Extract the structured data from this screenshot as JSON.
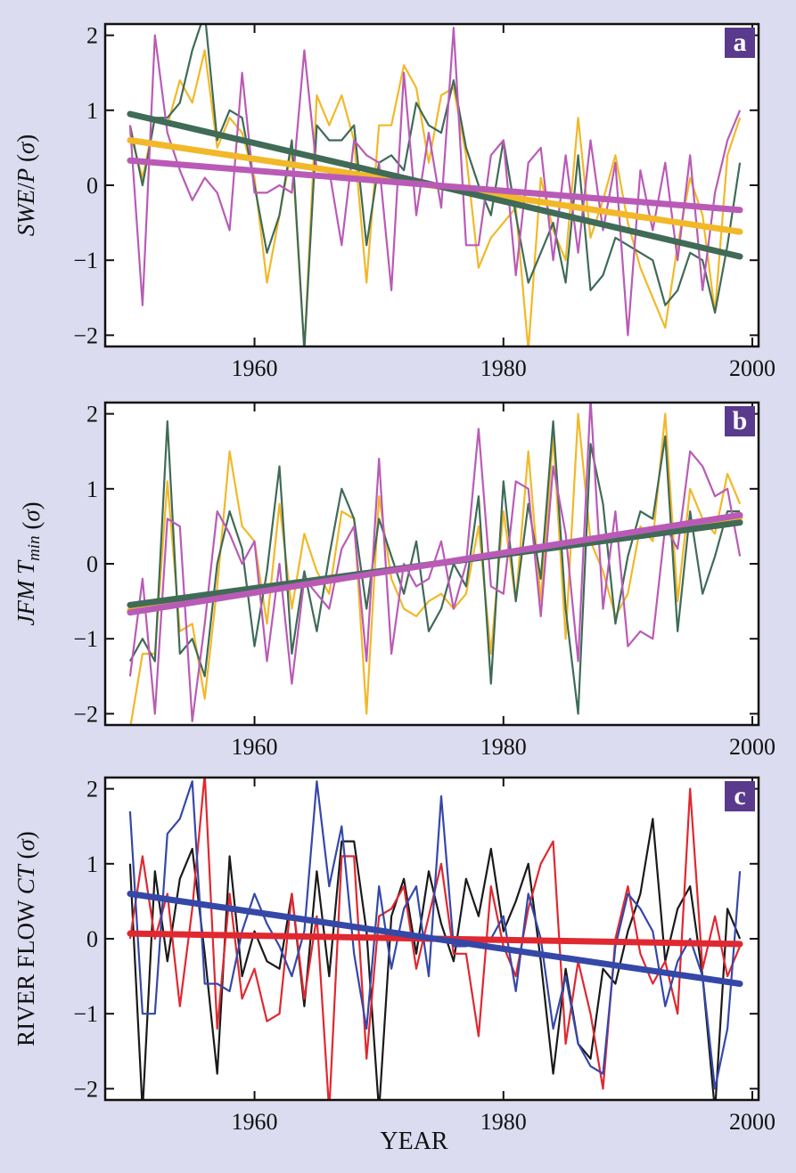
{
  "chart_data": [
    {
      "type": "line",
      "panel_letter": "a",
      "ylabel_parts": [
        {
          "text": "SWE",
          "italic": true
        },
        {
          "text": "/",
          "italic": false
        },
        {
          "text": "P",
          "italic": true
        },
        {
          "text": " (",
          "italic": false
        },
        {
          "text": "σ",
          "italic": true
        },
        {
          "text": ")",
          "italic": false
        }
      ],
      "xlabel": "",
      "xlim": [
        1948,
        2000.5
      ],
      "ylim": [
        -2.15,
        2.15
      ],
      "xticks": [
        1960,
        1980,
        2000
      ],
      "xtick_labels": [
        "1960",
        "1980",
        "2000"
      ],
      "yticks": [
        -2,
        -1,
        0,
        1,
        2
      ],
      "ytick_labels": [
        "−2",
        "−1",
        "0",
        "1",
        "2"
      ],
      "x_start": 1950,
      "series": [
        {
          "color": "#f2b829",
          "values": [
            0.7,
            0.1,
            0.9,
            0.8,
            1.4,
            1.1,
            1.8,
            0.5,
            0.9,
            0.7,
            0.1,
            -1.3,
            -0.4,
            0.5,
            -2.2,
            1.2,
            0.8,
            1.2,
            0.6,
            -1.3,
            0.8,
            0.8,
            1.6,
            1.3,
            0.3,
            1.2,
            1.3,
            0.4,
            -1.1,
            -0.7,
            -0.5,
            -0.3,
            -2.2,
            0.1,
            -0.6,
            -1.0,
            0.9,
            -0.7,
            -0.2,
            0.4,
            -0.5,
            -1.1,
            -1.5,
            -1.9,
            -0.8,
            0.1,
            -0.4,
            -1.7,
            0.4,
            0.9
          ]
        },
        {
          "color": "#3f6b57",
          "values": [
            0.8,
            0.0,
            0.9,
            0.9,
            1.1,
            1.8,
            2.3,
            0.6,
            1.0,
            0.9,
            0.0,
            -0.9,
            -0.4,
            0.6,
            -2.2,
            0.8,
            0.6,
            0.6,
            0.8,
            -0.8,
            0.3,
            0.4,
            0.2,
            1.1,
            0.8,
            0.7,
            1.4,
            0.5,
            0.0,
            -0.4,
            0.6,
            -0.4,
            -1.3,
            -0.9,
            -0.5,
            -1.3,
            0.4,
            -1.4,
            -1.2,
            -0.7,
            -0.8,
            -0.9,
            -1.0,
            -1.6,
            -1.4,
            -0.9,
            -1.0,
            -1.7,
            -0.8,
            0.3
          ]
        },
        {
          "color": "#b95bb6",
          "values": [
            0.8,
            -1.6,
            2.0,
            0.7,
            0.2,
            -0.2,
            0.1,
            -0.1,
            -0.6,
            1.5,
            -0.1,
            -0.1,
            0.0,
            -0.1,
            1.8,
            0.2,
            0.2,
            -0.8,
            0.6,
            0.4,
            0.3,
            -1.4,
            1.5,
            -0.4,
            0.7,
            -0.3,
            2.1,
            -0.8,
            -0.8,
            0.4,
            0.6,
            -1.2,
            0.3,
            0.5,
            -1.0,
            0.4,
            -0.9,
            0.6,
            -0.6,
            0.3,
            -2.0,
            0.2,
            -0.6,
            0.3,
            -1.0,
            0.4,
            -1.4,
            -0.1,
            0.6,
            1.0
          ]
        }
      ],
      "trend_lines": [
        {
          "color": "#f2b829",
          "x": [
            1950,
            1999
          ],
          "y": [
            0.6,
            -0.62
          ]
        },
        {
          "color": "#3f6b57",
          "x": [
            1950,
            1999
          ],
          "y": [
            0.95,
            -0.95
          ]
        },
        {
          "color": "#b95bb6",
          "x": [
            1950,
            1999
          ],
          "y": [
            0.33,
            -0.33
          ]
        }
      ]
    },
    {
      "type": "line",
      "panel_letter": "b",
      "ylabel_parts": [
        {
          "text": "JFM T",
          "italic": true
        },
        {
          "text": "min",
          "italic": true,
          "sub": true
        },
        {
          "text": " (",
          "italic": false
        },
        {
          "text": "σ",
          "italic": true
        },
        {
          "text": ")",
          "italic": false
        }
      ],
      "xlabel": "",
      "xlim": [
        1948,
        2000.5
      ],
      "ylim": [
        -2.15,
        2.15
      ],
      "xticks": [
        1960,
        1980,
        2000
      ],
      "xtick_labels": [
        "1960",
        "1980",
        "2000"
      ],
      "yticks": [
        -2,
        -1,
        0,
        1,
        2
      ],
      "ytick_labels": [
        "−2",
        "−1",
        "0",
        "1",
        "2"
      ],
      "x_start": 1950,
      "series": [
        {
          "color": "#f2b829",
          "values": [
            -2.2,
            -1.2,
            -1.2,
            1.1,
            -0.9,
            -0.8,
            -1.8,
            -0.3,
            1.5,
            0.5,
            0.3,
            -0.8,
            0.8,
            -0.6,
            0.4,
            -0.1,
            -0.4,
            0.7,
            0.6,
            -2.0,
            0.9,
            -0.2,
            -0.6,
            -0.7,
            -0.5,
            -0.4,
            -0.6,
            -0.4,
            0.5,
            -1.2,
            0.7,
            -0.5,
            1.5,
            -0.5,
            1.7,
            -1.0,
            2.0,
            0.3,
            -0.1,
            -0.7,
            -0.4,
            0.5,
            0.3,
            2.0,
            -0.5,
            1.0,
            0.6,
            0.4,
            1.2,
            0.8
          ]
        },
        {
          "color": "#3f6b57",
          "values": [
            -1.3,
            -1.0,
            -1.3,
            1.9,
            -1.2,
            -1.0,
            -1.5,
            0.0,
            0.7,
            0.2,
            -1.1,
            -0.1,
            1.3,
            -1.2,
            -0.1,
            -0.9,
            0.1,
            1.0,
            0.6,
            -0.6,
            0.6,
            0.1,
            -0.4,
            0.3,
            -0.9,
            -0.6,
            0.0,
            -0.3,
            0.9,
            -1.6,
            1.1,
            -0.5,
            0.8,
            -0.2,
            1.9,
            -0.6,
            -2.0,
            1.6,
            0.8,
            -0.8,
            0.1,
            0.7,
            0.6,
            1.7,
            -0.9,
            0.7,
            -0.4,
            0.1,
            0.7,
            0.7
          ]
        },
        {
          "color": "#b95bb6",
          "values": [
            -1.5,
            -0.2,
            -2.0,
            0.6,
            0.5,
            -2.1,
            -0.8,
            0.7,
            0.4,
            0.0,
            0.3,
            -1.3,
            0.0,
            -1.6,
            -0.2,
            -0.4,
            -0.6,
            0.2,
            0.5,
            -1.3,
            1.4,
            -1.2,
            0.0,
            -0.3,
            -0.2,
            0.3,
            -0.6,
            0.0,
            1.8,
            -0.3,
            -0.4,
            1.1,
            1.0,
            -0.7,
            1.3,
            0.4,
            -1.3,
            2.2,
            -0.6,
            0.7,
            -1.1,
            -0.9,
            -1.0,
            0.5,
            0.2,
            1.5,
            1.3,
            0.9,
            1.0,
            0.1
          ]
        }
      ],
      "trend_lines": [
        {
          "color": "#f2b829",
          "x": [
            1950,
            1999
          ],
          "y": [
            -0.62,
            0.62
          ]
        },
        {
          "color": "#3f6b57",
          "x": [
            1950,
            1999
          ],
          "y": [
            -0.55,
            0.55
          ]
        },
        {
          "color": "#b95bb6",
          "x": [
            1950,
            1999
          ],
          "y": [
            -0.65,
            0.65
          ]
        }
      ]
    },
    {
      "type": "line",
      "panel_letter": "c",
      "ylabel_parts": [
        {
          "text": "RIVER FLOW ",
          "italic": false
        },
        {
          "text": "CT",
          "italic": true
        },
        {
          "text": " (",
          "italic": false
        },
        {
          "text": "σ",
          "italic": true
        },
        {
          "text": ")",
          "italic": false
        }
      ],
      "xlabel": "YEAR",
      "xlim": [
        1948,
        2000.5
      ],
      "ylim": [
        -2.15,
        2.15
      ],
      "xticks": [
        1960,
        1980,
        2000
      ],
      "xtick_labels": [
        "1960",
        "1980",
        "2000"
      ],
      "yticks": [
        -2,
        -1,
        0,
        1,
        2
      ],
      "ytick_labels": [
        "−2",
        "−1",
        "0",
        "1",
        "2"
      ],
      "x_start": 1950,
      "series": [
        {
          "color": "#1a1a1a",
          "values": [
            1.0,
            -2.3,
            0.9,
            -0.3,
            0.8,
            1.2,
            -0.2,
            -1.8,
            1.1,
            -0.5,
            0.1,
            -0.3,
            -0.4,
            0.6,
            -0.9,
            0.9,
            -0.5,
            1.3,
            1.3,
            0.1,
            -2.3,
            0.3,
            0.8,
            -0.2,
            0.9,
            0.2,
            -0.3,
            0.8,
            0.3,
            1.2,
            0.1,
            0.5,
            1.0,
            -0.3,
            -1.8,
            -0.4,
            -1.4,
            -1.6,
            -0.4,
            -0.6,
            0.1,
            0.6,
            1.6,
            -0.3,
            0.4,
            0.7,
            -0.5,
            -2.3,
            0.4,
            0.0
          ]
        },
        {
          "color": "#e02830",
          "values": [
            0.0,
            1.1,
            0.0,
            0.6,
            -0.9,
            0.4,
            2.2,
            -1.2,
            0.6,
            -0.8,
            -0.4,
            -1.1,
            -1.0,
            0.6,
            -0.8,
            0.3,
            -2.3,
            1.1,
            1.1,
            -1.6,
            0.3,
            0.4,
            0.7,
            -0.4,
            0.3,
            1.0,
            -0.2,
            -0.2,
            -1.3,
            0.7,
            -0.1,
            -0.5,
            0.4,
            1.0,
            1.3,
            -1.4,
            -0.3,
            -1.0,
            -2.0,
            0.0,
            0.7,
            -0.2,
            -0.6,
            -0.3,
            -1.0,
            2.0,
            -0.4,
            0.3,
            -0.5,
            -0.1
          ]
        },
        {
          "color": "#3548a8",
          "values": [
            1.7,
            -1.0,
            -1.0,
            1.4,
            1.6,
            2.1,
            -0.6,
            -0.6,
            -0.7,
            0.1,
            0.6,
            0.2,
            -0.1,
            -0.5,
            0.1,
            2.1,
            0.7,
            1.5,
            -0.2,
            -1.2,
            0.7,
            -0.4,
            0.4,
            0.7,
            -0.5,
            1.9,
            -0.1,
            -0.1,
            0.0,
            0.0,
            0.3,
            -0.7,
            0.6,
            0.0,
            -1.2,
            -0.5,
            -1.4,
            -1.7,
            -1.8,
            -0.1,
            0.6,
            0.4,
            0.1,
            -0.9,
            -0.3,
            0.0,
            -0.5,
            -2.0,
            -1.2,
            0.9
          ]
        }
      ],
      "trend_lines": [
        {
          "color": "#e02830",
          "x": [
            1950,
            1999
          ],
          "y": [
            0.07,
            -0.07
          ]
        },
        {
          "color": "#3548a8",
          "x": [
            1950,
            1999
          ],
          "y": [
            0.6,
            -0.6
          ]
        }
      ]
    }
  ]
}
